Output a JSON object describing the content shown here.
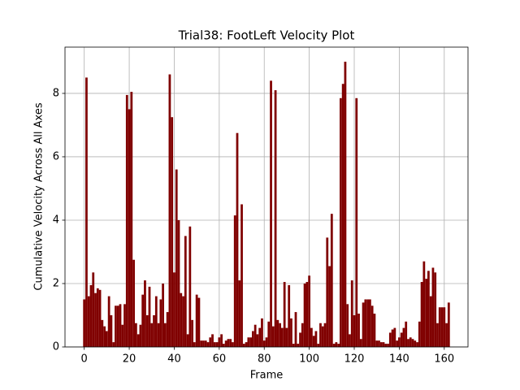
{
  "chart_data": {
    "type": "bar",
    "title": "Trial38: FootLeft Velocity Plot",
    "x_label": "Frame",
    "y_label": "Cumulative Velocity Across All Axes",
    "x": [
      0,
      1,
      2,
      3,
      4,
      5,
      6,
      7,
      8,
      9,
      10,
      11,
      12,
      13,
      14,
      15,
      16,
      17,
      18,
      19,
      20,
      21,
      22,
      23,
      24,
      25,
      26,
      27,
      28,
      29,
      30,
      31,
      32,
      33,
      34,
      35,
      36,
      37,
      38,
      39,
      40,
      41,
      42,
      43,
      44,
      45,
      46,
      47,
      48,
      49,
      50,
      51,
      52,
      53,
      54,
      55,
      56,
      57,
      58,
      59,
      60,
      61,
      62,
      63,
      64,
      65,
      66,
      67,
      68,
      69,
      70,
      71,
      72,
      73,
      74,
      75,
      76,
      77,
      78,
      79,
      80,
      81,
      82,
      83,
      84,
      85,
      86,
      87,
      88,
      89,
      90,
      91,
      92,
      93,
      94,
      95,
      96,
      97,
      98,
      99,
      100,
      101,
      102,
      103,
      104,
      105,
      106,
      107,
      108,
      109,
      110,
      111,
      112,
      113,
      114,
      115,
      116,
      117,
      118,
      119,
      120,
      121,
      122,
      123,
      124,
      125,
      126,
      127,
      128,
      129,
      130,
      131,
      132,
      133,
      134,
      135,
      136,
      137,
      138,
      139,
      140,
      141,
      142,
      143,
      144,
      145,
      146,
      147,
      148,
      149,
      150,
      151,
      152,
      153,
      154,
      155,
      156,
      157,
      158,
      159,
      160,
      161,
      162
    ],
    "values": [
      1.5,
      8.5,
      1.6,
      1.95,
      2.35,
      1.7,
      1.85,
      1.8,
      0.85,
      0.65,
      0.5,
      1.6,
      1.0,
      0.15,
      1.3,
      1.3,
      1.35,
      0.7,
      1.35,
      7.95,
      7.5,
      8.05,
      2.75,
      0.75,
      0.4,
      0.7,
      1.65,
      2.1,
      1.0,
      1.9,
      0.75,
      1.0,
      1.6,
      0.75,
      1.5,
      2.0,
      0.75,
      1.1,
      8.6,
      7.25,
      2.35,
      5.6,
      4.0,
      1.7,
      1.6,
      3.5,
      0.4,
      3.8,
      0.85,
      0.15,
      1.65,
      1.55,
      0.2,
      0.2,
      0.2,
      0.15,
      0.3,
      0.4,
      0.15,
      0.15,
      0.3,
      0.4,
      0.1,
      0.2,
      0.25,
      0.25,
      0.15,
      4.15,
      6.75,
      2.1,
      4.5,
      0.1,
      0.15,
      0.3,
      0.3,
      0.5,
      0.7,
      0.4,
      0.6,
      0.9,
      0.2,
      0.3,
      0.8,
      8.4,
      0.65,
      8.1,
      0.85,
      0.75,
      0.6,
      2.05,
      0.6,
      1.95,
      0.9,
      0.1,
      1.1,
      0.1,
      0.45,
      0.75,
      2.0,
      2.05,
      2.25,
      0.6,
      0.35,
      0.5,
      0.1,
      0.75,
      0.65,
      0.75,
      3.45,
      2.55,
      4.2,
      0.1,
      0.15,
      0.1,
      7.85,
      8.3,
      9.0,
      1.35,
      0.4,
      2.1,
      1.0,
      7.85,
      1.05,
      0.25,
      1.4,
      1.5,
      1.5,
      1.5,
      1.3,
      1.05,
      0.2,
      0.2,
      0.15,
      0.15,
      0.1,
      0.1,
      0.45,
      0.55,
      0.6,
      0.2,
      0.3,
      0.45,
      0.6,
      0.8,
      0.25,
      0.3,
      0.25,
      0.2,
      0.15,
      0.8,
      2.05,
      2.7,
      2.15,
      2.4,
      1.6,
      2.5,
      2.35,
      0.75,
      1.25,
      1.25,
      1.25,
      0.75,
      1.4
    ],
    "color": "#800000",
    "xlim": [
      -8.55,
      170.55
    ],
    "xticks": [
      0,
      20,
      40,
      60,
      80,
      100,
      120,
      140,
      160
    ],
    "ylim": [
      0,
      9.46
    ],
    "yticks": [
      0,
      2,
      4,
      6,
      8
    ],
    "grid": true
  }
}
